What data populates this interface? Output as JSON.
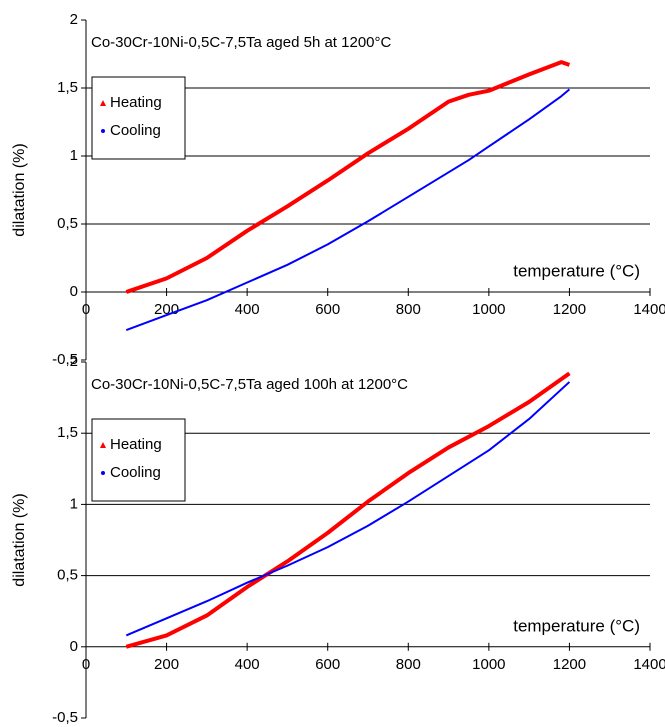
{
  "chart_data": [
    {
      "type": "line",
      "title": "Co-30Cr-10Ni-0,5C-7,5Ta aged 5h at 1200°C",
      "x_label": "temperature (°C)",
      "y_label": "dilatation (%)",
      "x": [
        100,
        200,
        300,
        400,
        500,
        600,
        700,
        800,
        900,
        950,
        1000,
        1100,
        1180,
        1200
      ],
      "series": [
        {
          "name": "Heating",
          "color": "#ff0000",
          "marker": "triangle",
          "values": [
            0,
            0.1,
            0.25,
            0.45,
            0.63,
            0.82,
            1.02,
            1.2,
            1.4,
            1.45,
            1.48,
            1.6,
            1.69,
            1.67
          ]
        },
        {
          "name": "Cooling",
          "color": "#0000ff",
          "marker": "circle",
          "values": [
            -0.28,
            -0.17,
            -0.06,
            0.07,
            0.2,
            0.35,
            0.52,
            0.7,
            0.88,
            0.97,
            1.07,
            1.27,
            1.44,
            1.49
          ]
        }
      ],
      "xlim": [
        0,
        1400
      ],
      "xticks": [
        0,
        200,
        400,
        600,
        800,
        1000,
        1200,
        1400
      ],
      "ylim": [
        -0.5,
        2
      ],
      "yticks": [
        {
          "value": -0.5,
          "label": "-0,5"
        },
        0,
        {
          "value": 0.5,
          "label": "0,5"
        },
        1,
        {
          "value": 1.5,
          "label": "1,5"
        },
        2
      ],
      "grid": true,
      "legend": "upper left"
    },
    {
      "type": "line",
      "title": "Co-30Cr-10Ni-0,5C-7,5Ta aged 100h at 1200°C",
      "x_label": "temperature (°C)",
      "y_label": "dilatation (%)",
      "x": [
        100,
        200,
        300,
        400,
        500,
        600,
        700,
        800,
        900,
        1000,
        1100,
        1200
      ],
      "series": [
        {
          "name": "Heating",
          "color": "#ff0000",
          "marker": "triangle",
          "values": [
            0,
            0.08,
            0.22,
            0.42,
            0.6,
            0.8,
            1.02,
            1.22,
            1.4,
            1.55,
            1.72,
            1.92
          ]
        },
        {
          "name": "Cooling",
          "color": "#0000ff",
          "marker": "circle",
          "values": [
            0.08,
            0.2,
            0.32,
            0.45,
            0.57,
            0.7,
            0.85,
            1.02,
            1.2,
            1.38,
            1.6,
            1.86
          ]
        }
      ],
      "xlim": [
        0,
        1400
      ],
      "xticks": [
        0,
        200,
        400,
        600,
        800,
        1000,
        1200,
        1400
      ],
      "ylim": [
        -0.5,
        2
      ],
      "yticks": [
        {
          "value": -0.5,
          "label": "-0,5"
        },
        0,
        {
          "value": 0.5,
          "label": "0,5"
        },
        1,
        {
          "value": 1.5,
          "label": "1,5"
        },
        2
      ],
      "grid": true,
      "legend": "upper left"
    }
  ]
}
